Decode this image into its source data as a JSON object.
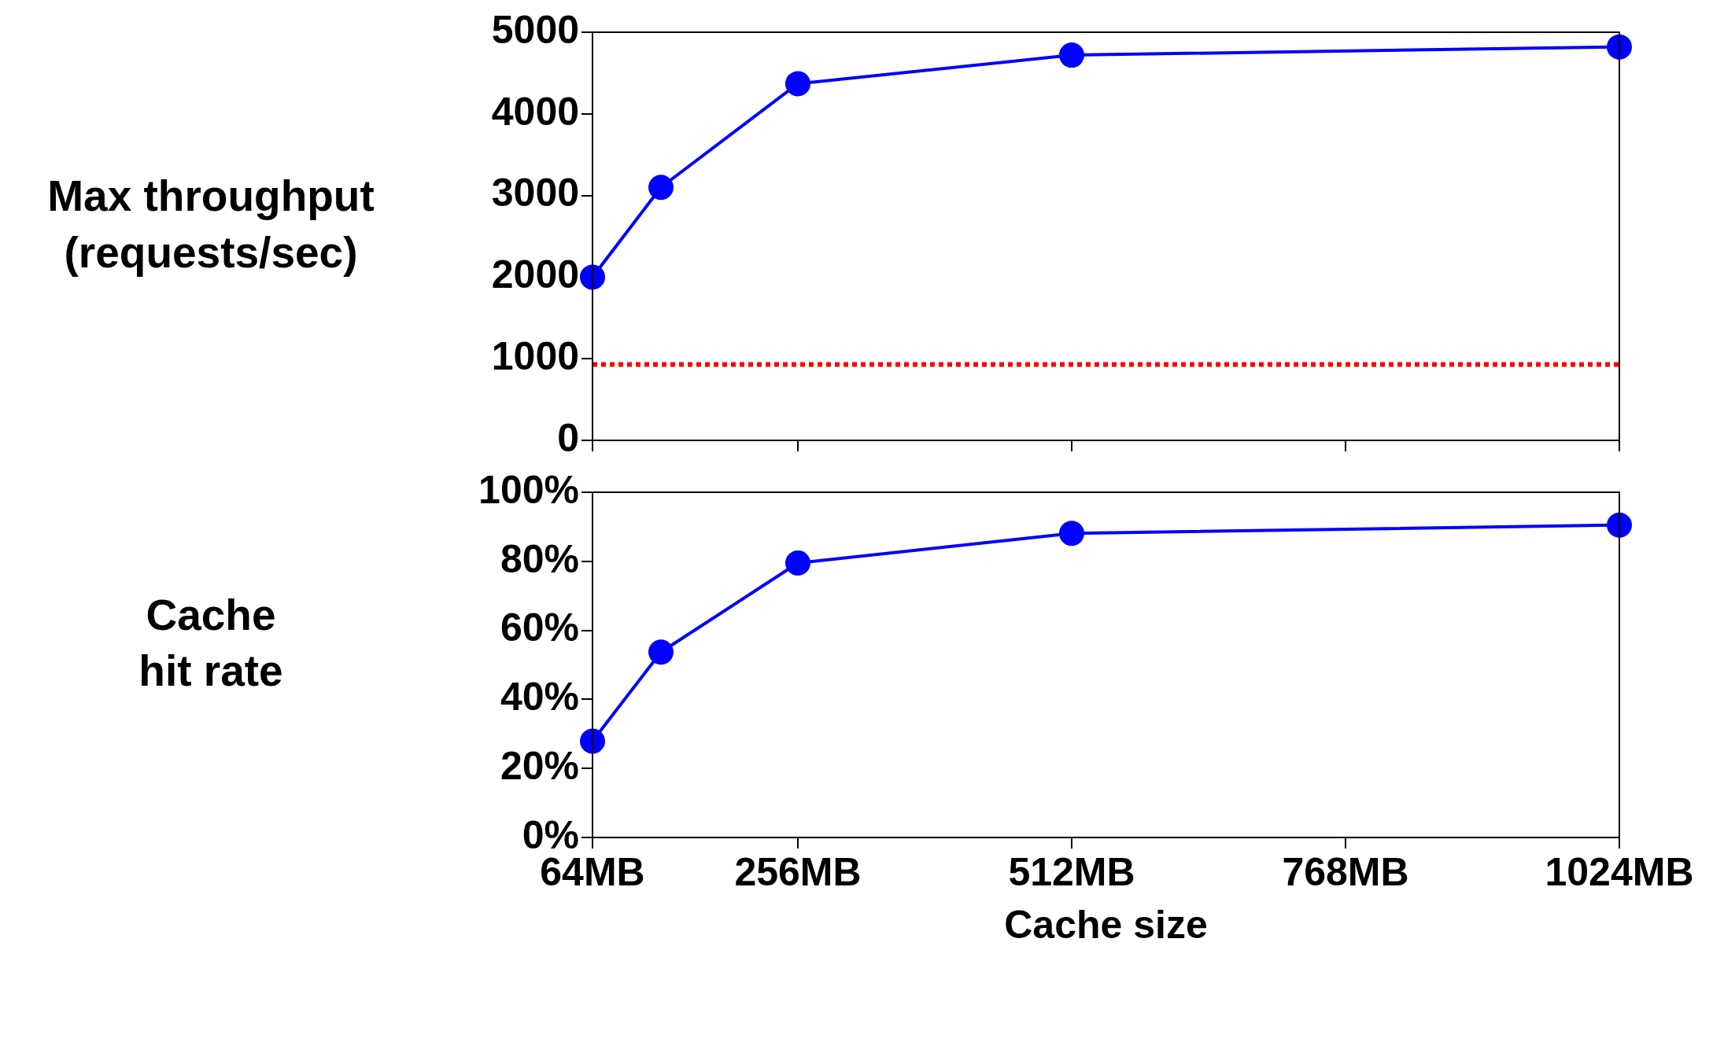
{
  "chart_data": [
    {
      "type": "line",
      "ylabel": "Max throughput\n(requests/sec)",
      "x": [
        64,
        128,
        256,
        512,
        1024
      ],
      "xlim": [
        64,
        1024
      ],
      "xticks": [
        64,
        256,
        512,
        768,
        1024
      ],
      "ylim": [
        0,
        5000
      ],
      "yticks": [
        0,
        1000,
        2000,
        3000,
        4000,
        5000
      ],
      "tick_labels": "y",
      "marker": "circle",
      "line_style": "solid",
      "grid": false,
      "legend": false,
      "series": [
        {
          "color": "#0000ff",
          "values": [
            2000,
            3100,
            4370,
            4720,
            4820
          ]
        }
      ],
      "ref_lines": [
        {
          "axis": "y",
          "value": 930,
          "color": "#ff0000",
          "line_style": "dotted"
        }
      ]
    },
    {
      "type": "line",
      "ylabel": "Cache\nhit rate",
      "xlabel": "Cache size",
      "x": [
        64,
        128,
        256,
        512,
        1024
      ],
      "xlim": [
        64,
        1024
      ],
      "xticks": [
        {
          "value": 64,
          "label": "64MB"
        },
        {
          "value": 256,
          "label": "256MB"
        },
        {
          "value": 512,
          "label": "512MB"
        },
        {
          "value": 768,
          "label": "768MB"
        },
        {
          "value": 1024,
          "label": "1024MB"
        }
      ],
      "ylim": [
        0,
        100
      ],
      "yticks": [
        {
          "value": 0,
          "label": "0%"
        },
        {
          "value": 20,
          "label": "20%"
        },
        {
          "value": 40,
          "label": "40%"
        },
        {
          "value": 60,
          "label": "60%"
        },
        {
          "value": 80,
          "label": "80%"
        },
        {
          "value": 100,
          "label": "100%"
        }
      ],
      "marker": "circle",
      "line_style": "solid",
      "grid": false,
      "legend": false,
      "series": [
        {
          "color": "#0000ff",
          "values": [
            27.9,
            53.7,
            79.5,
            88.1,
            90.5
          ]
        }
      ]
    }
  ]
}
